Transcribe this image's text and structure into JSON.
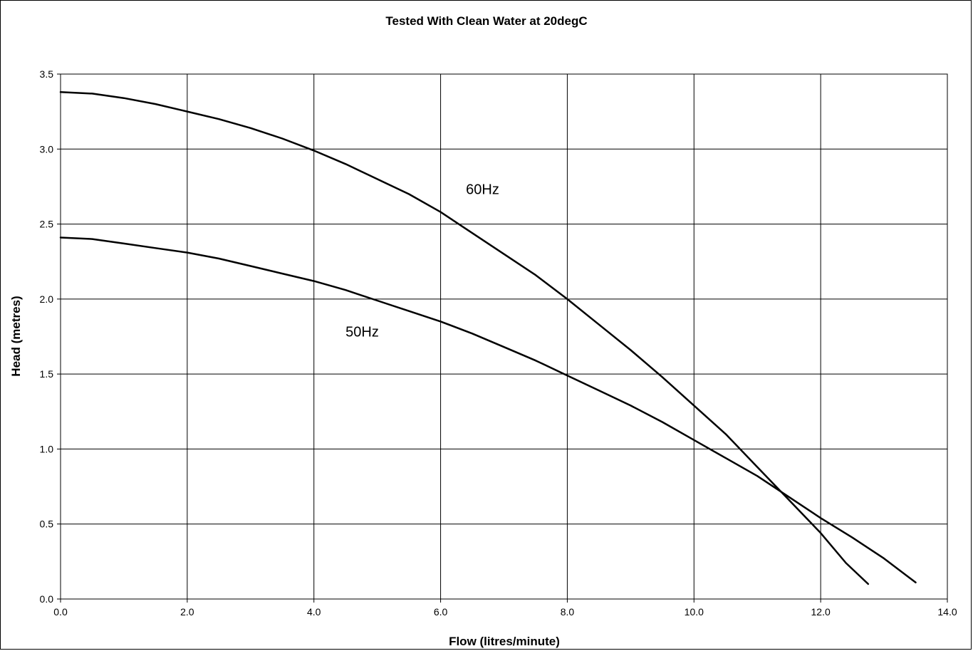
{
  "chart_data": {
    "type": "line",
    "title": "Tested With Clean Water at 20degC",
    "xlabel": "Flow (litres/minute)",
    "ylabel": "Head (metres)",
    "xlim": [
      0,
      14
    ],
    "ylim": [
      0,
      3.5
    ],
    "x_ticks": [
      "0.0",
      "2.0",
      "4.0",
      "6.0",
      "8.0",
      "10.0",
      "12.0",
      "14.0"
    ],
    "y_ticks": [
      "0.0",
      "0.5",
      "1.0",
      "1.5",
      "2.0",
      "2.5",
      "3.0",
      "3.5"
    ],
    "grid": true,
    "legend": "none",
    "line_color": "#000000",
    "series": [
      {
        "name": "60Hz",
        "points": [
          [
            0.0,
            3.38
          ],
          [
            0.5,
            3.37
          ],
          [
            1.0,
            3.34
          ],
          [
            1.5,
            3.3
          ],
          [
            2.0,
            3.25
          ],
          [
            2.5,
            3.2
          ],
          [
            3.0,
            3.14
          ],
          [
            3.5,
            3.07
          ],
          [
            4.0,
            2.99
          ],
          [
            4.5,
            2.9
          ],
          [
            5.0,
            2.8
          ],
          [
            5.5,
            2.7
          ],
          [
            6.0,
            2.58
          ],
          [
            6.5,
            2.44
          ],
          [
            7.0,
            2.3
          ],
          [
            7.5,
            2.16
          ],
          [
            8.0,
            2.0
          ],
          [
            8.5,
            1.83
          ],
          [
            9.0,
            1.66
          ],
          [
            9.5,
            1.48
          ],
          [
            10.0,
            1.29
          ],
          [
            10.5,
            1.1
          ],
          [
            11.0,
            0.88
          ],
          [
            11.5,
            0.66
          ],
          [
            12.0,
            0.44
          ],
          [
            12.4,
            0.24
          ],
          [
            12.75,
            0.1
          ]
        ]
      },
      {
        "name": "50Hz",
        "points": [
          [
            0.0,
            2.41
          ],
          [
            0.5,
            2.4
          ],
          [
            1.0,
            2.37
          ],
          [
            1.5,
            2.34
          ],
          [
            2.0,
            2.31
          ],
          [
            2.5,
            2.27
          ],
          [
            3.0,
            2.22
          ],
          [
            3.5,
            2.17
          ],
          [
            4.0,
            2.12
          ],
          [
            4.5,
            2.06
          ],
          [
            5.0,
            1.99
          ],
          [
            5.5,
            1.92
          ],
          [
            6.0,
            1.85
          ],
          [
            6.5,
            1.77
          ],
          [
            7.0,
            1.68
          ],
          [
            7.5,
            1.59
          ],
          [
            8.0,
            1.49
          ],
          [
            8.5,
            1.39
          ],
          [
            9.0,
            1.29
          ],
          [
            9.5,
            1.18
          ],
          [
            10.0,
            1.06
          ],
          [
            10.5,
            0.94
          ],
          [
            11.0,
            0.82
          ],
          [
            11.5,
            0.68
          ],
          [
            12.0,
            0.54
          ],
          [
            12.5,
            0.41
          ],
          [
            13.0,
            0.27
          ],
          [
            13.5,
            0.11
          ]
        ]
      }
    ],
    "annotations": [
      {
        "text": "60Hz",
        "x": 6.4,
        "y": 2.7
      },
      {
        "text": "50Hz",
        "x": 4.5,
        "y": 1.75
      }
    ]
  }
}
